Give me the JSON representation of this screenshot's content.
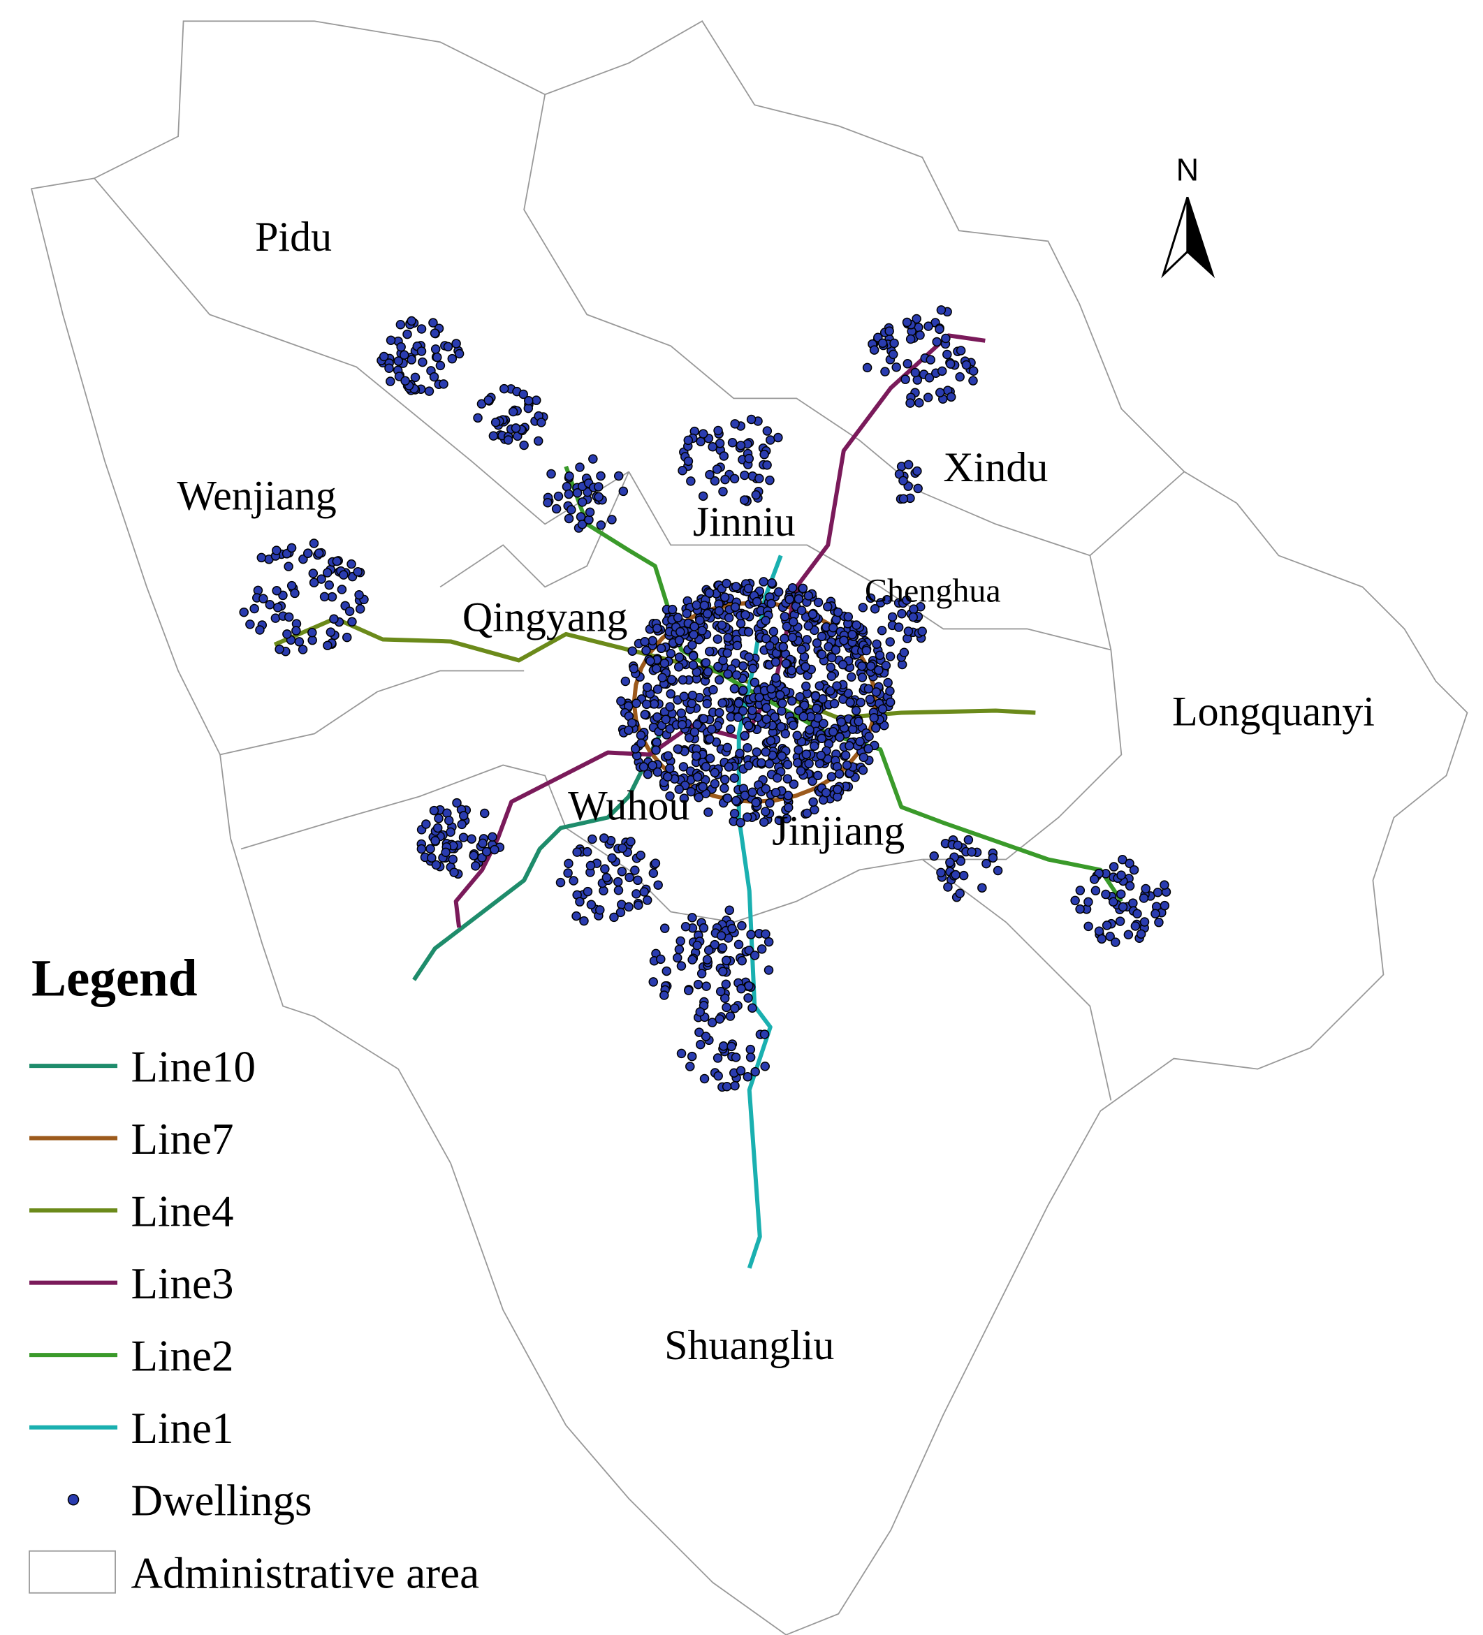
{
  "map": {
    "north_label": "N",
    "districts": [
      {
        "label": "Pidu"
      },
      {
        "label": "Wenjiang"
      },
      {
        "label": "Xindu"
      },
      {
        "label": "Jinniu"
      },
      {
        "label": "Chenghua"
      },
      {
        "label": "Qingyang"
      },
      {
        "label": "Longquanyi"
      },
      {
        "label": "Wuhou"
      },
      {
        "label": "Jinjiang"
      },
      {
        "label": "Shuangliu"
      }
    ]
  },
  "legend": {
    "title": "Legend",
    "lines": [
      {
        "label": "Line10",
        "color": "#1e8c6b"
      },
      {
        "label": "Line7",
        "color": "#9c5a1c"
      },
      {
        "label": "Line4",
        "color": "#6b8a1a"
      },
      {
        "label": "Line3",
        "color": "#7a1a5a"
      },
      {
        "label": "Line2",
        "color": "#3a9a2a"
      },
      {
        "label": "Line1",
        "color": "#1ab0b0"
      }
    ],
    "dwellings": {
      "label": "Dwellings",
      "color": "#2a3cb0"
    },
    "area": {
      "label": "Administrative area"
    }
  }
}
